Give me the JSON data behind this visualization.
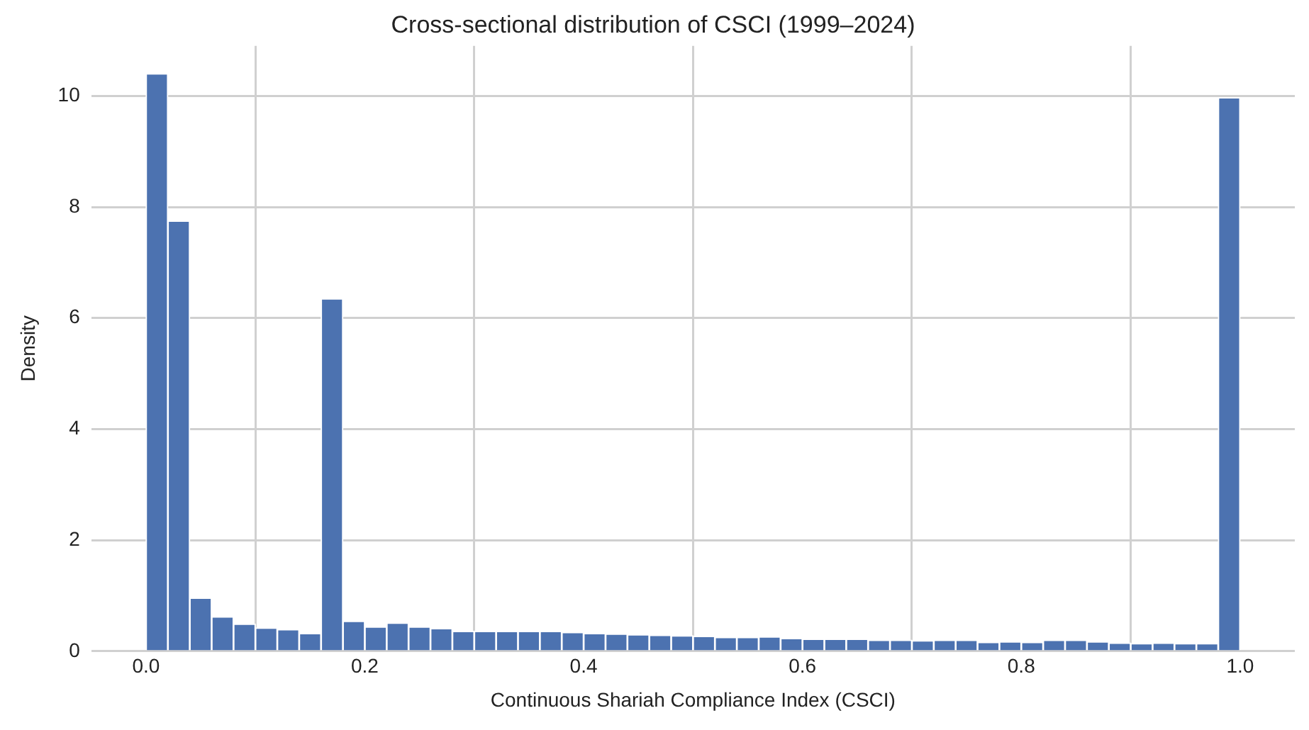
{
  "chart_data": {
    "type": "histogram",
    "title": "Cross-sectional distribution of CSCI (1999–2024)",
    "xlabel": "Continuous Shariah Compliance Index (CSCI)",
    "ylabel": "Density",
    "bins": [
      0,
      0.02,
      0.04,
      0.06,
      0.08,
      0.1,
      0.12,
      0.14,
      0.16,
      0.18,
      0.2,
      0.22,
      0.24,
      0.26,
      0.28,
      0.3,
      0.32,
      0.34,
      0.36,
      0.38,
      0.4,
      0.42,
      0.44,
      0.46,
      0.48,
      0.5,
      0.52,
      0.54,
      0.56,
      0.58,
      0.6,
      0.62,
      0.64,
      0.66,
      0.68,
      0.7,
      0.72,
      0.74,
      0.76,
      0.78,
      0.8,
      0.82,
      0.84,
      0.86,
      0.88,
      0.9,
      0.92,
      0.94,
      0.96,
      0.98,
      1.0
    ],
    "values": [
      10.4,
      7.75,
      0.96,
      0.62,
      0.49,
      0.42,
      0.39,
      0.32,
      6.35,
      0.54,
      0.44,
      0.51,
      0.44,
      0.41,
      0.36,
      0.36,
      0.36,
      0.36,
      0.36,
      0.34,
      0.32,
      0.31,
      0.3,
      0.29,
      0.28,
      0.27,
      0.25,
      0.25,
      0.26,
      0.23,
      0.22,
      0.22,
      0.22,
      0.2,
      0.2,
      0.19,
      0.2,
      0.2,
      0.16,
      0.17,
      0.16,
      0.2,
      0.2,
      0.17,
      0.15,
      0.14,
      0.15,
      0.14,
      0.14,
      9.97
    ],
    "color": "#4c72b0",
    "xlim": [
      -0.05,
      1.05
    ],
    "xticks": [
      {
        "value": 0,
        "label": "0.0"
      },
      0.2,
      0.4,
      0.6,
      0.8,
      {
        "value": 1,
        "label": "1.0"
      }
    ],
    "ylim": [
      0,
      10.9
    ],
    "yticks": [
      0,
      2,
      4,
      6,
      8,
      10
    ],
    "grid": true
  }
}
